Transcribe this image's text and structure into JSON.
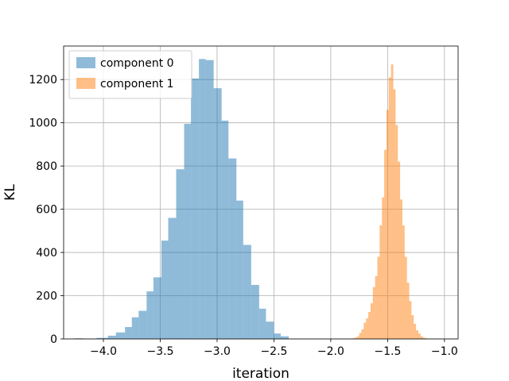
{
  "chart_data": {
    "type": "histogram",
    "title": "",
    "xlabel": "iteration",
    "ylabel": "KL",
    "xlim": [
      -4.35,
      -0.88
    ],
    "ylim": [
      0,
      1355
    ],
    "xticks": [
      -4.0,
      -3.5,
      -3.0,
      -2.5,
      -2.0,
      -1.5,
      -1.0
    ],
    "xtick_labels": [
      "−4.0",
      "−3.5",
      "−3.0",
      "−2.5",
      "−2.0",
      "−1.5",
      "−1.0"
    ],
    "yticks": [
      0,
      200,
      400,
      600,
      800,
      1000,
      1200
    ],
    "ytick_labels": [
      "0",
      "200",
      "400",
      "600",
      "800",
      "1000",
      "1200"
    ],
    "grid": true,
    "legend_position": "top-left",
    "series": [
      {
        "name": "component 0",
        "color": "#1f77b4",
        "alpha": 0.5,
        "bin_edges": [
          -4.25,
          -4.18,
          -4.06,
          -3.96,
          -3.89,
          -3.81,
          -3.75,
          -3.69,
          -3.62,
          -3.56,
          -3.49,
          -3.43,
          -3.36,
          -3.29,
          -3.23,
          -3.16,
          -3.1,
          -3.03,
          -2.96,
          -2.9,
          -2.83,
          -2.77,
          -2.7,
          -2.63,
          -2.57,
          -2.5,
          -2.44,
          -2.37,
          -2.31,
          -2.25,
          -2.18
        ],
        "counts": [
          3,
          1,
          5,
          15,
          30,
          55,
          100,
          130,
          220,
          285,
          455,
          560,
          785,
          995,
          1205,
          1295,
          1290,
          1160,
          1010,
          835,
          640,
          435,
          250,
          140,
          80,
          25,
          12,
          0,
          0,
          0
        ]
      },
      {
        "name": "component 1",
        "color": "#ff7f0e",
        "alpha": 0.5,
        "bin_edges": [
          -1.81,
          -1.79,
          -1.77,
          -1.75,
          -1.73,
          -1.71,
          -1.69,
          -1.67,
          -1.65,
          -1.63,
          -1.61,
          -1.59,
          -1.57,
          -1.55,
          -1.53,
          -1.51,
          -1.49,
          -1.47,
          -1.45,
          -1.43,
          -1.41,
          -1.39,
          -1.37,
          -1.35,
          -1.33,
          -1.31,
          -1.29,
          -1.27,
          -1.25,
          -1.23,
          -1.21,
          -1.19,
          -1.17,
          -1.15,
          -1.13,
          -1.11
        ],
        "counts": [
          3,
          6,
          12,
          28,
          45,
          75,
          95,
          125,
          165,
          240,
          290,
          380,
          525,
          655,
          875,
          1060,
          1210,
          1270,
          1155,
          990,
          820,
          645,
          525,
          380,
          260,
          175,
          110,
          70,
          40,
          25,
          12,
          6,
          3,
          1,
          0
        ]
      }
    ]
  }
}
